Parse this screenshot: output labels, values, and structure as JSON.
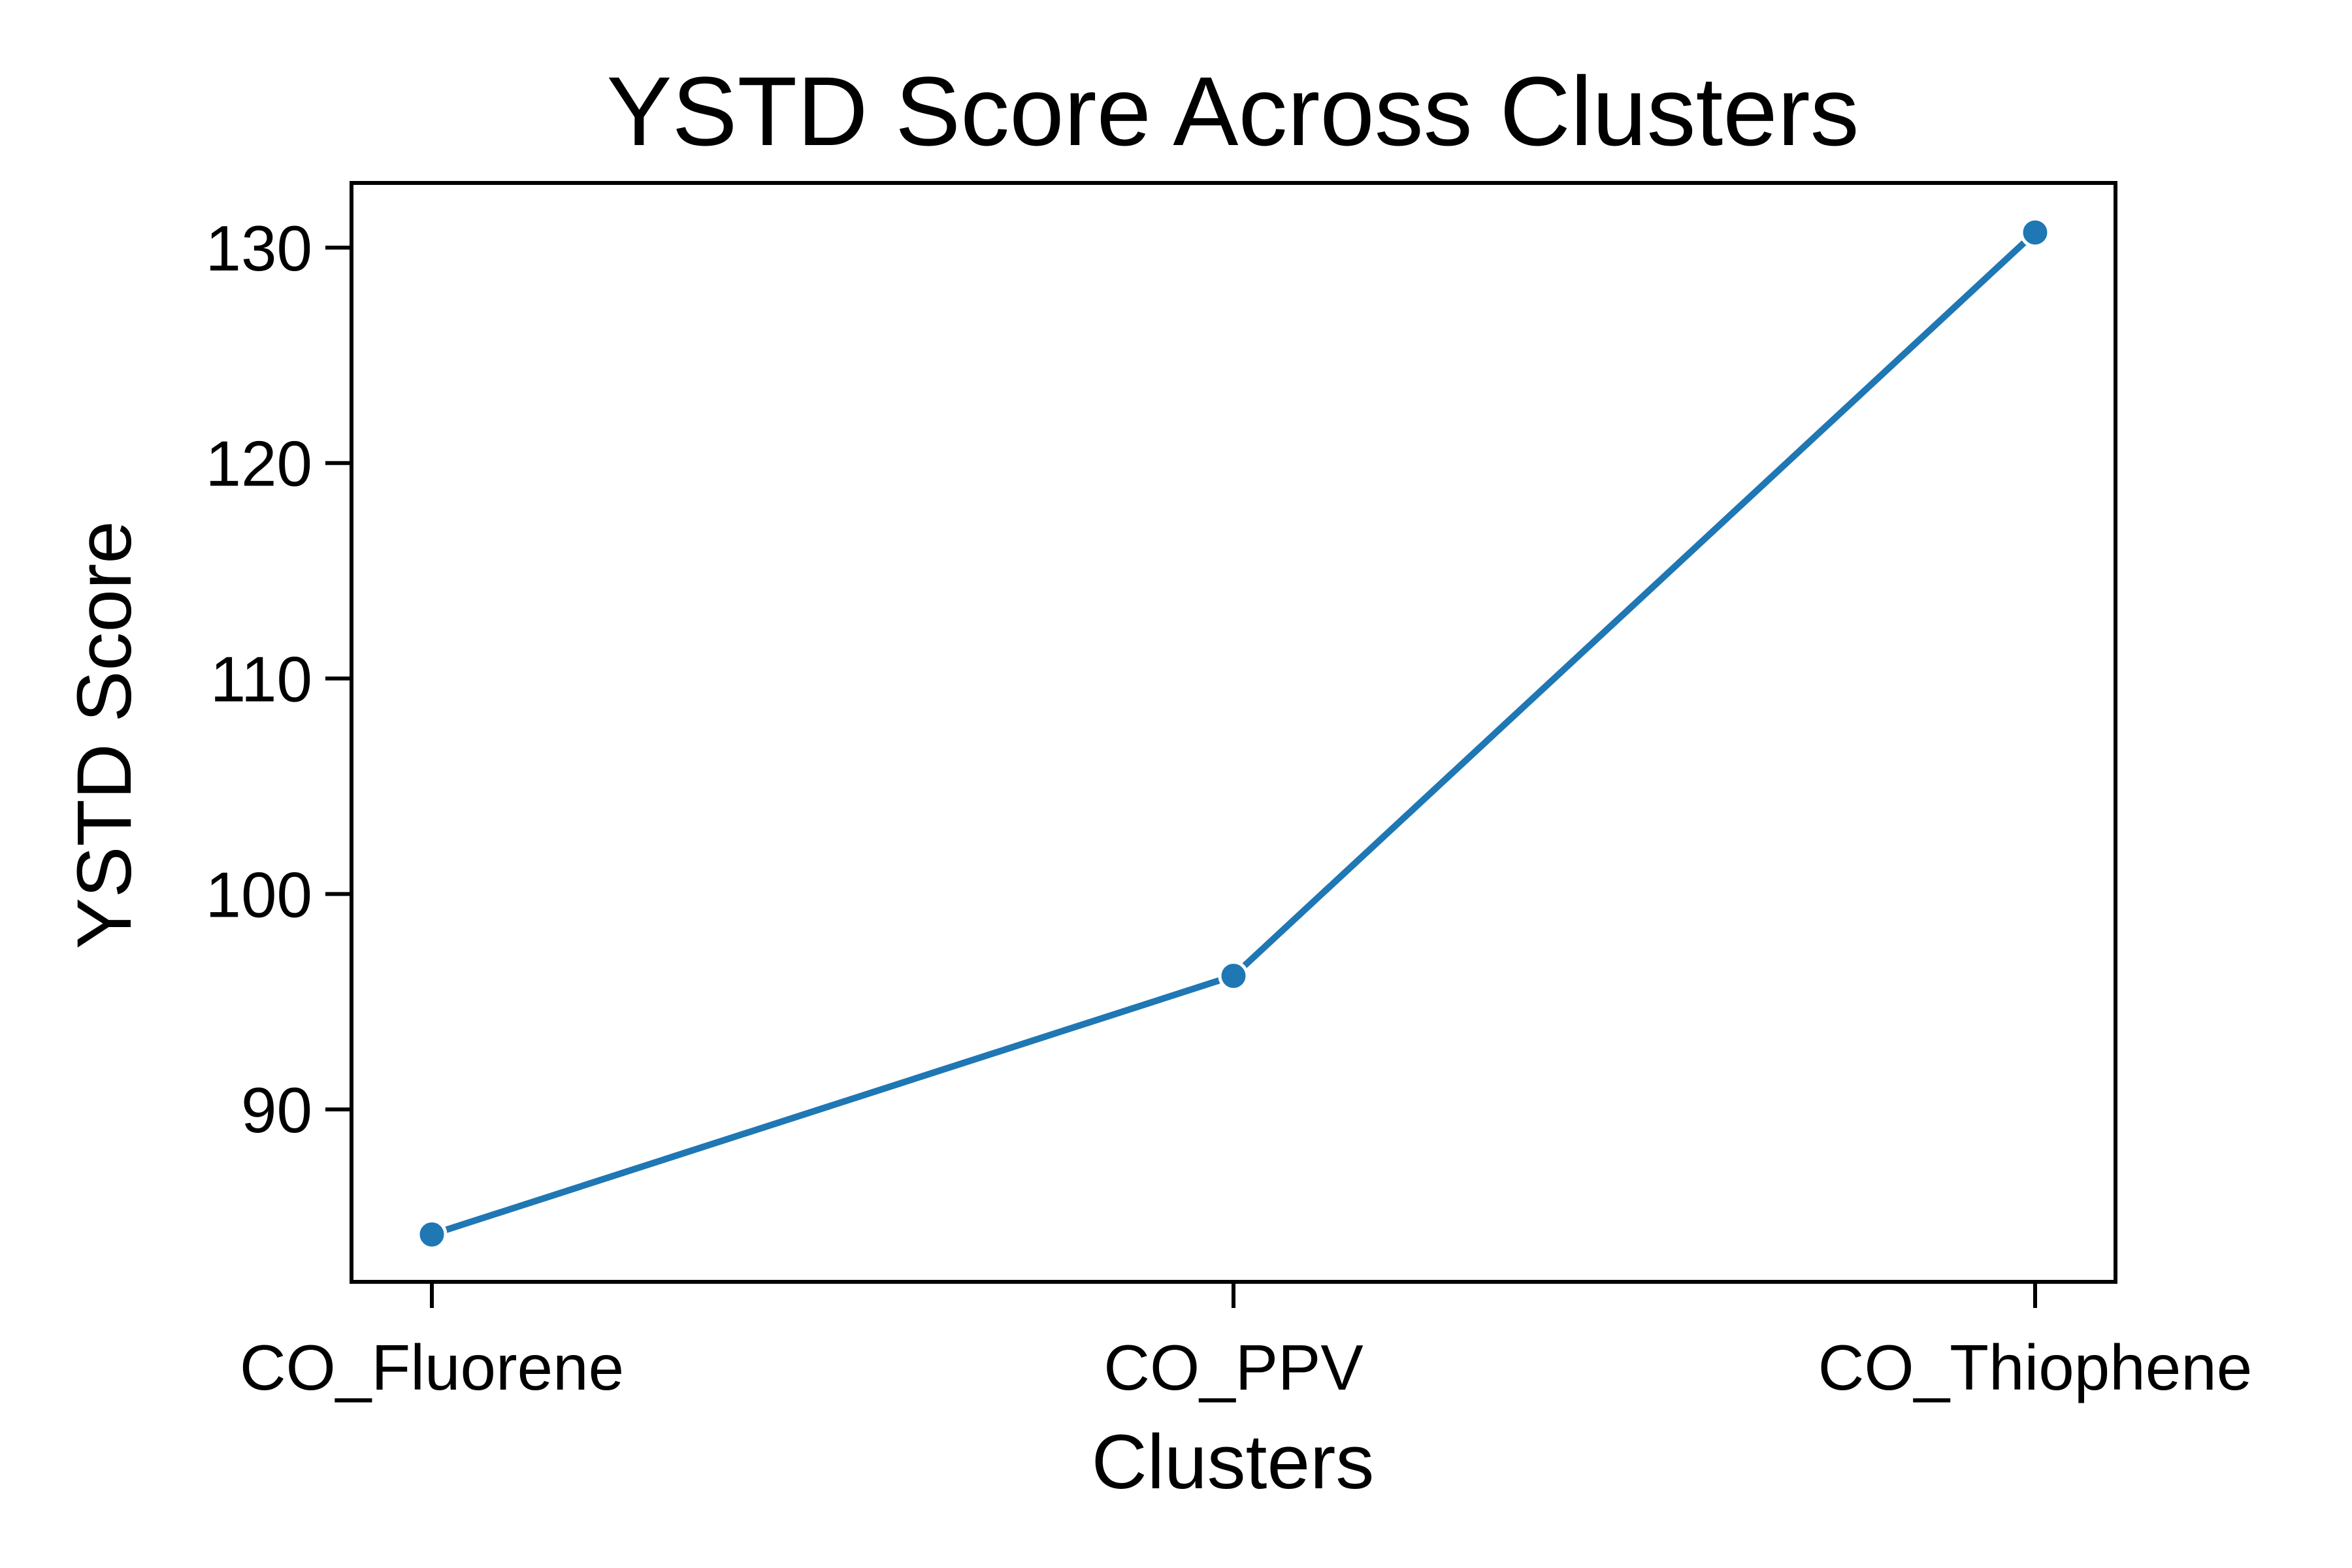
{
  "chart_data": {
    "type": "line",
    "title": "YSTD Score Across Clusters",
    "xlabel": "Clusters",
    "ylabel": "YSTD Score",
    "categories": [
      "CO_Fluorene",
      "CO_PPV",
      "CO_Thiophene"
    ],
    "series": [
      {
        "values": [
          84.2,
          96.2,
          130.7
        ],
        "color": "#1f77b4"
      }
    ],
    "ylim": [
      82,
      133
    ],
    "yticks": [
      90,
      100,
      110,
      120,
      130
    ],
    "grid": false,
    "legend": "none"
  }
}
